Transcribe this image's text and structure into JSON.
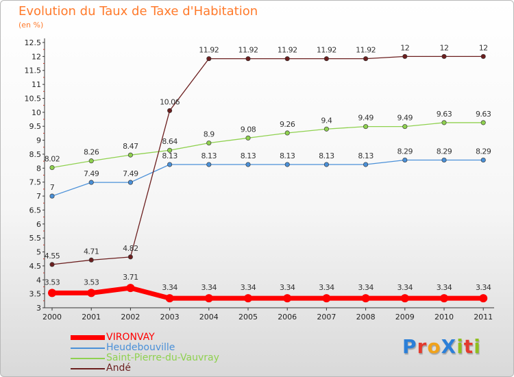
{
  "title": "Evolution du Taux de Taxe d'Habitation",
  "unit_label": "(en %)",
  "logo": {
    "text": "ProXiti",
    "letter_colors": [
      "#2b7fd8",
      "#e33b2e",
      "#f0a21b",
      "#2b7fd8",
      "#8fbf1e",
      "#e33b2e",
      "#8fbf1e"
    ]
  },
  "chart_data": {
    "type": "line",
    "x": [
      "2000",
      "2001",
      "2002",
      "2003",
      "2004",
      "2005",
      "2006",
      "2007",
      "2008",
      "2009",
      "2010",
      "2011"
    ],
    "ylim": [
      3,
      12.5
    ],
    "yticks": [
      "3",
      "3.5",
      "4",
      "4.5",
      "5",
      "5.5",
      "6",
      "6.5",
      "7",
      "7.5",
      "8",
      "8.5",
      "9",
      "9.5",
      "10",
      "10.5",
      "11",
      "11.5",
      "12",
      "12.5"
    ],
    "grid": false,
    "legend_position": "bottom-left",
    "series": [
      {
        "name": "VIRONVAY",
        "color": "#ff0000",
        "values": [
          3.53,
          3.53,
          3.71,
          3.34,
          3.34,
          3.34,
          3.34,
          3.34,
          3.34,
          3.34,
          3.34,
          3.34
        ],
        "labels": [
          "3.53",
          "3.53",
          "3.71",
          "3.34",
          "3.34",
          "3.34",
          "3.34",
          "3.34",
          "3.34",
          "3.34",
          "3.34",
          "3.34"
        ]
      },
      {
        "name": "Heudebouville",
        "color": "#4a90d8",
        "values": [
          7,
          7.49,
          7.49,
          8.13,
          8.13,
          8.13,
          8.13,
          8.13,
          8.13,
          8.29,
          8.29,
          8.29
        ],
        "labels": [
          "7",
          "7.49",
          "7.49",
          "8.13",
          "8.13",
          "8.13",
          "8.13",
          "8.13",
          "8.13",
          "8.29",
          "8.29",
          "8.29"
        ]
      },
      {
        "name": "Saint-Pierre-du-Vauvray",
        "color": "#8fd14f",
        "values": [
          8.02,
          8.26,
          8.47,
          8.64,
          8.9,
          9.08,
          9.26,
          9.4,
          9.49,
          9.49,
          9.63,
          9.63
        ],
        "labels": [
          "8.02",
          "8.26",
          "8.47",
          "8.64",
          "8.9",
          "9.08",
          "9.26",
          "9.4",
          "9.49",
          "9.49",
          "9.63",
          "9.63"
        ]
      },
      {
        "name": "Andé",
        "color": "#6b1e1e",
        "values": [
          4.55,
          4.71,
          4.82,
          10.06,
          11.92,
          11.92,
          11.92,
          11.92,
          11.92,
          12,
          12,
          12
        ],
        "labels": [
          "4.55",
          "4.71",
          "4.82",
          "10.06",
          "11.92",
          "11.92",
          "11.92",
          "11.92",
          "11.92",
          "12",
          "12",
          "12"
        ]
      }
    ]
  }
}
